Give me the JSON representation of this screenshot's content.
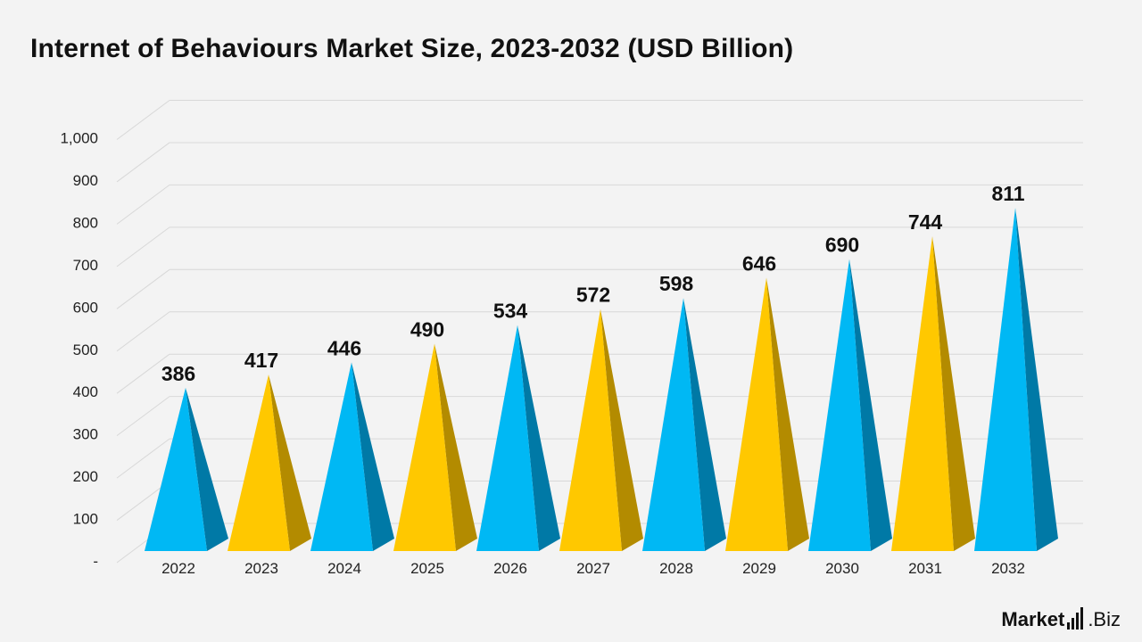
{
  "title": "Internet of Behaviours Market Size, 2023-2032 (USD Billion)",
  "brand": {
    "name_bold": "Market",
    "name_rest": ".Biz",
    "logo_icon": "bar-chart-logo-icon"
  },
  "colors": {
    "blue_front": "#00b8f4",
    "blue_side": "#0079a6",
    "yellow_front": "#ffc800",
    "yellow_side": "#b38b00",
    "grid": "#d8d8d8",
    "label": "#111111",
    "tick": "#222222"
  },
  "chart_data": {
    "type": "bar",
    "title": "Internet of Behaviours Market Size, 2023-2032 (USD Billion)",
    "xlabel": "",
    "ylabel": "",
    "ylim": [
      0,
      1000
    ],
    "yticks": [
      "-",
      "100",
      "200",
      "300",
      "400",
      "500",
      "600",
      "700",
      "800",
      "900",
      "1,000"
    ],
    "grid": true,
    "legend": "none",
    "categories": [
      "2022",
      "2023",
      "2024",
      "2025",
      "2026",
      "2027",
      "2028",
      "2029",
      "2030",
      "2031",
      "2032"
    ],
    "values": [
      386,
      417,
      446,
      490,
      534,
      572,
      598,
      646,
      690,
      744,
      811
    ],
    "value_labels": [
      "386",
      "417",
      "446",
      "490",
      "534",
      "572",
      "598",
      "646",
      "690",
      "744",
      "811"
    ],
    "bar_colors": [
      "blue",
      "yellow",
      "blue",
      "yellow",
      "blue",
      "yellow",
      "blue",
      "yellow",
      "blue",
      "yellow",
      "blue"
    ]
  }
}
